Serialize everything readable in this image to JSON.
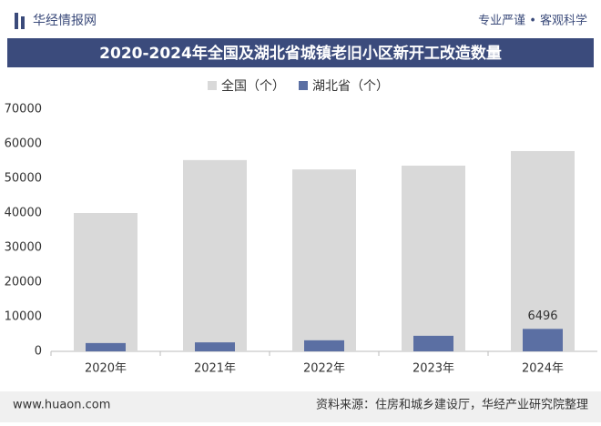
{
  "header": {
    "brand": "华经情报网",
    "slogan": "专业严谨 • 客观科学"
  },
  "chart_data": {
    "type": "bar",
    "title": "2020-2024年全国及湖北省城镇老旧小区新开工改造数量",
    "categories": [
      "2020年",
      "2021年",
      "2022年",
      "2023年",
      "2024年"
    ],
    "series": [
      {
        "name": "全国（个）",
        "color": "#d9d9d9",
        "values": [
          40000,
          55300,
          52600,
          53700,
          57900
        ]
      },
      {
        "name": "湖北省（个）",
        "color": "#5b6fa3",
        "values": [
          2400,
          2600,
          3200,
          4500,
          6496
        ],
        "labeled": [
          4
        ]
      }
    ],
    "ylim": [
      0,
      70000
    ],
    "yticks": [
      0,
      10000,
      20000,
      30000,
      40000,
      50000,
      60000,
      70000
    ],
    "grid": false
  },
  "footer": {
    "website": "www.huaon.com",
    "source": "资料来源：住房和城乡建设厅，华经产业研究院整理"
  }
}
